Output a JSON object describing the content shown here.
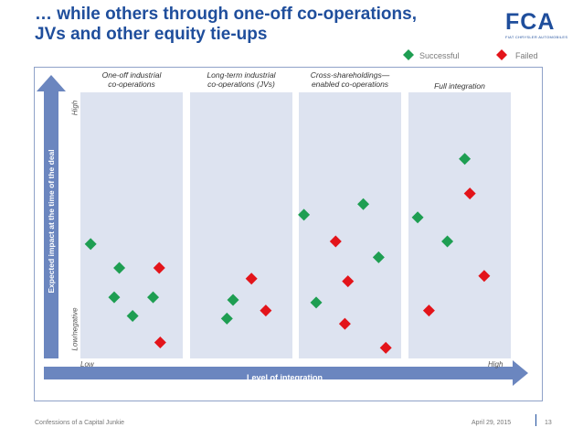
{
  "title_line1": "… while others through one-off co-operations,",
  "title_line2": "JVs and other equity tie-ups",
  "logo": {
    "text": "FCA",
    "subtext": "FIAT CHRYSLER AUTOMOBILES"
  },
  "legend": {
    "successful": "Successful",
    "failed": "Failed"
  },
  "colors": {
    "successful": "#1e9e52",
    "failed": "#e3141a",
    "panel": "#dde3f0",
    "arrow": "#6b86bf",
    "title": "#1f4e9c"
  },
  "footer": {
    "left": "Confessions of a Capital Junkie",
    "date": "April 29, 2015",
    "page": "13"
  },
  "chart_data": {
    "type": "scatter",
    "xlabel": "Level of integration",
    "ylabel": "Expected impact at the time of the deal",
    "x_low_label": "Low",
    "x_high_label": "High",
    "y_high_label": "High",
    "y_low_label": "Low/negative",
    "panels": [
      {
        "label_line1": "One-off industrial",
        "label_line2": "co-operations",
        "points": [
          {
            "x": 0.1,
            "y": 0.43,
            "status": "successful"
          },
          {
            "x": 0.38,
            "y": 0.34,
            "status": "successful"
          },
          {
            "x": 0.33,
            "y": 0.23,
            "status": "successful"
          },
          {
            "x": 0.51,
            "y": 0.16,
            "status": "successful"
          },
          {
            "x": 0.71,
            "y": 0.23,
            "status": "successful"
          },
          {
            "x": 0.77,
            "y": 0.34,
            "status": "failed"
          },
          {
            "x": 0.78,
            "y": 0.06,
            "status": "failed"
          }
        ]
      },
      {
        "label_line1": "Long-term industrial",
        "label_line2": "co-operations (JVs)",
        "points": [
          {
            "x": 0.42,
            "y": 0.22,
            "status": "successful"
          },
          {
            "x": 0.36,
            "y": 0.15,
            "status": "successful"
          },
          {
            "x": 0.6,
            "y": 0.3,
            "status": "failed"
          },
          {
            "x": 0.74,
            "y": 0.18,
            "status": "failed"
          }
        ]
      },
      {
        "label_line1": "Cross-shareholdings—",
        "label_line2": "enabled co-operations",
        "points": [
          {
            "x": 0.05,
            "y": 0.54,
            "status": "successful"
          },
          {
            "x": 0.63,
            "y": 0.58,
            "status": "successful"
          },
          {
            "x": 0.78,
            "y": 0.38,
            "status": "successful"
          },
          {
            "x": 0.17,
            "y": 0.21,
            "status": "successful"
          },
          {
            "x": 0.36,
            "y": 0.44,
            "status": "failed"
          },
          {
            "x": 0.48,
            "y": 0.29,
            "status": "failed"
          },
          {
            "x": 0.45,
            "y": 0.13,
            "status": "failed"
          },
          {
            "x": 0.85,
            "y": 0.04,
            "status": "failed"
          }
        ]
      },
      {
        "label_line1": "Full integration",
        "label_line2": "",
        "points": [
          {
            "x": 0.09,
            "y": 0.53,
            "status": "successful"
          },
          {
            "x": 0.38,
            "y": 0.44,
            "status": "successful"
          },
          {
            "x": 0.55,
            "y": 0.75,
            "status": "successful"
          },
          {
            "x": 0.6,
            "y": 0.62,
            "status": "failed"
          },
          {
            "x": 0.74,
            "y": 0.31,
            "status": "failed"
          },
          {
            "x": 0.2,
            "y": 0.18,
            "status": "failed"
          }
        ]
      }
    ]
  }
}
